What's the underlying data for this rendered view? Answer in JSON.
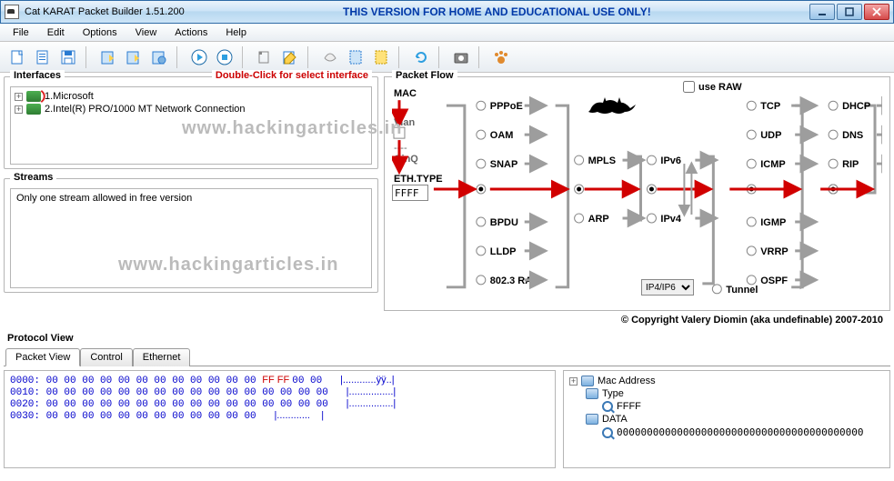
{
  "window": {
    "title": "Cat KARAT Packet Builder 1.51.200",
    "banner": "THIS VERSION FOR HOME AND EDUCATIONAL USE ONLY!"
  },
  "menu": {
    "items": [
      "File",
      "Edit",
      "Options",
      "View",
      "Actions",
      "Help"
    ]
  },
  "toolbar": {
    "buttons": [
      {
        "name": "new",
        "color": "#fff",
        "stroke": "#2a7bd1"
      },
      {
        "name": "open",
        "color": "#fff",
        "stroke": "#2a7bd1"
      },
      {
        "name": "save",
        "color": "#fff",
        "stroke": "#2a7bd1"
      },
      {
        "name": "sep"
      },
      {
        "name": "import",
        "color": "#ffd24d",
        "stroke": "#2a7bd1"
      },
      {
        "name": "export",
        "color": "#ffd24d",
        "stroke": "#2a7bd1"
      },
      {
        "name": "capture",
        "color": "#7bb1e0",
        "stroke": "#2a7bd1"
      },
      {
        "name": "sep"
      },
      {
        "name": "play",
        "color": "#2e9fe0",
        "stroke": "#1a6aa8"
      },
      {
        "name": "stop",
        "color": "#2e9fe0",
        "stroke": "#1a6aa8"
      },
      {
        "name": "sep"
      },
      {
        "name": "flag",
        "color": "#bbb",
        "stroke": "#888"
      },
      {
        "name": "edit",
        "color": "#ffd24d",
        "stroke": "#b58a00"
      },
      {
        "name": "sep"
      },
      {
        "name": "clear",
        "color": "#eee",
        "stroke": "#999"
      },
      {
        "name": "doc1",
        "color": "#cde4f7",
        "stroke": "#2a7bd1"
      },
      {
        "name": "doc2",
        "color": "#ffe27a",
        "stroke": "#c99a00"
      },
      {
        "name": "sep"
      },
      {
        "name": "refresh",
        "color": "#2e9fe0",
        "stroke": "#1a6aa8"
      },
      {
        "name": "sep"
      },
      {
        "name": "snapshot",
        "color": "#888",
        "stroke": "#555"
      },
      {
        "name": "sep"
      },
      {
        "name": "paw",
        "color": "#e08a2e",
        "stroke": "#a55e12"
      }
    ]
  },
  "interfaces": {
    "label": "Interfaces",
    "hint": "Double-Click for select interface",
    "items": [
      {
        "idx": "1",
        "name": "Microsoft",
        "wifi": true
      },
      {
        "idx": "2",
        "name": "Intel(R) PRO/1000 MT Network Connection",
        "wifi": false
      }
    ]
  },
  "streams": {
    "label": "Streams",
    "text": "Only one stream allowed in free version"
  },
  "flow": {
    "label": "Packet Flow",
    "mac": "MAC",
    "vlan": "Vlan",
    "qinq": "QinQ",
    "ethtype": "ETH.TYPE",
    "ethtype_val": "FFFF",
    "useRaw": "use RAW",
    "col1": [
      "PPPoE",
      "OAM",
      "SNAP",
      "",
      "BPDU",
      "LLDP",
      "802.3 RAW"
    ],
    "col2": [
      "MPLS",
      "",
      "ARP"
    ],
    "col3": [
      "IPv6",
      "",
      "IPv4"
    ],
    "tunnel": "Tunnel",
    "tunnel_sel": "IP4/IP6",
    "col4": [
      "TCP",
      "UDP",
      "ICMP",
      "",
      "IGMP",
      "VRRP",
      "OSPF"
    ],
    "col5": [
      "DHCP",
      "DNS",
      "RIP",
      "",
      "",
      "",
      ""
    ],
    "colors": {
      "red": "#d10000",
      "gray": "#9d9d9d",
      "arrow": "#9d9d9d"
    }
  },
  "copyright": "© Copyright Valery Diomin (aka undefinable) 2007-2010",
  "protoview": {
    "label": "Protocol View",
    "tabs": [
      "Packet View",
      "Control",
      "Ethernet"
    ],
    "active": 0,
    "hex": {
      "rows": [
        {
          "off": "0000:",
          "b": "00 00 00 00 00 00 00 00 00 00 00 00 ",
          "ff": "FF FF ",
          "b2": "00 00",
          "a": "|............ÿÿ..|"
        },
        {
          "off": "0010:",
          "b": "00 00 00 00 00 00 00 00 00 00 00 00 00 00 00 00",
          "ff": "",
          "b2": "",
          "a": "|................|"
        },
        {
          "off": "0020:",
          "b": "00 00 00 00 00 00 00 00 00 00 00 00 00 00 00 00",
          "ff": "",
          "b2": "",
          "a": "|................|"
        },
        {
          "off": "0030:",
          "b": "00 00 00 00 00 00 00 00 00 00 00 00",
          "ff": "",
          "b2": "",
          "a": "|............    |"
        }
      ]
    },
    "tree": {
      "mac": "Mac Address",
      "type": "Type",
      "typeval": "FFFF",
      "data": "DATA",
      "dataval": "00000000000000000000000000000000000000000"
    }
  },
  "watermark": "www.hackingarticles.in"
}
